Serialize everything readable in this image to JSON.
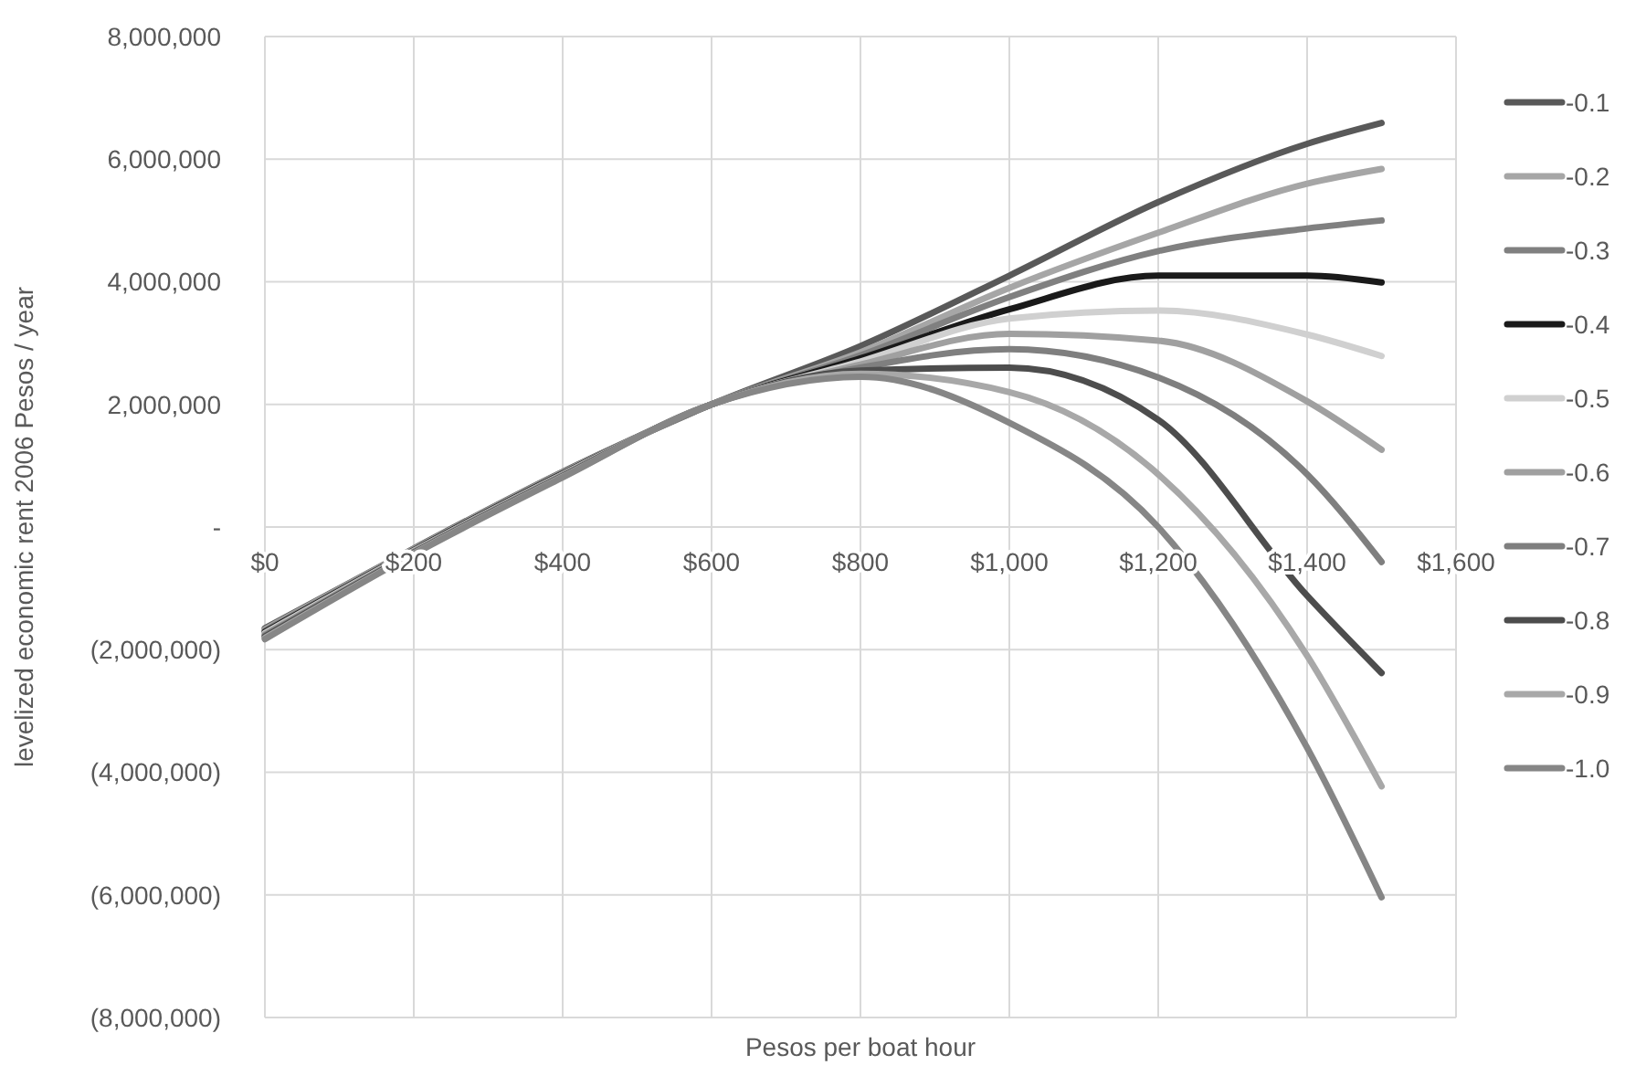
{
  "chart_data": {
    "type": "line",
    "xlabel": "Pesos per boat hour",
    "ylabel": "levelized economic rent 2006 Pesos / year",
    "x": [
      0,
      200,
      400,
      600,
      800,
      1000,
      1200,
      1400,
      1500
    ],
    "xlim": [
      0,
      1600
    ],
    "xticks": [
      {
        "value": 0,
        "label": "$0"
      },
      {
        "value": 200,
        "label": "$200"
      },
      {
        "value": 400,
        "label": "$400"
      },
      {
        "value": 600,
        "label": "$600"
      },
      {
        "value": 800,
        "label": "$800"
      },
      {
        "value": 1000,
        "label": "$1,000"
      },
      {
        "value": 1200,
        "label": "$1,200"
      },
      {
        "value": 1400,
        "label": "$1,400"
      },
      {
        "value": 1600,
        "label": "$1,600"
      }
    ],
    "ylim": [
      -8000000,
      8000000
    ],
    "yticks": [
      {
        "value": 8000000,
        "label": "8,000,000"
      },
      {
        "value": 6000000,
        "label": "6,000,000"
      },
      {
        "value": 4000000,
        "label": "4,000,000"
      },
      {
        "value": 2000000,
        "label": "2,000,000"
      },
      {
        "value": 0,
        "label": "-"
      },
      {
        "value": -2000000,
        "label": "(2,000,000)"
      },
      {
        "value": -4000000,
        "label": "(4,000,000)"
      },
      {
        "value": -6000000,
        "label": "(6,000,000)"
      },
      {
        "value": -8000000,
        "label": "(8,000,000)"
      }
    ],
    "grid": true,
    "legend": "right",
    "line_style": "solid",
    "series": [
      {
        "name": "-0.1",
        "color": "#595959",
        "values": [
          -1650000,
          -350000,
          900000,
          2000000,
          2950000,
          4100000,
          5300000,
          6250000,
          6590000
        ]
      },
      {
        "name": "-0.2",
        "color": "#a6a6a6",
        "values": [
          -1670000,
          -360000,
          890000,
          2000000,
          2850000,
          3900000,
          4800000,
          5600000,
          5840000
        ]
      },
      {
        "name": "-0.3",
        "color": "#808080",
        "values": [
          -1690000,
          -370000,
          880000,
          2000000,
          2800000,
          3750000,
          4500000,
          4870000,
          5000000
        ]
      },
      {
        "name": "-0.4",
        "color": "#1a1a1a",
        "values": [
          -1710000,
          -380000,
          870000,
          2000000,
          2750000,
          3550000,
          4100000,
          4100000,
          3990000
        ]
      },
      {
        "name": "-0.5",
        "color": "#d0d0d0",
        "values": [
          -1730000,
          -390000,
          860000,
          2000000,
          2700000,
          3400000,
          3530000,
          3140000,
          2790000
        ]
      },
      {
        "name": "-0.6",
        "color": "#a0a0a0",
        "values": [
          -1750000,
          -400000,
          850000,
          2000000,
          2650000,
          3150000,
          3040000,
          2050000,
          1260000
        ]
      },
      {
        "name": "-0.7",
        "color": "#7f7f7f",
        "values": [
          -1770000,
          -410000,
          840000,
          2000000,
          2600000,
          2900000,
          2440000,
          860000,
          -570000
        ]
      },
      {
        "name": "-0.8",
        "color": "#4d4d4d",
        "values": [
          -1790000,
          -420000,
          830000,
          2000000,
          2550000,
          2600000,
          1750000,
          -1120000,
          -2380000
        ]
      },
      {
        "name": "-0.9",
        "color": "#a8a8a8",
        "values": [
          -1810000,
          -430000,
          820000,
          2000000,
          2500000,
          2200000,
          860000,
          -2100000,
          -4230000
        ]
      },
      {
        "name": "-1.0",
        "color": "#868686",
        "values": [
          -1830000,
          -440000,
          810000,
          2000000,
          2450000,
          1700000,
          0,
          -3600000,
          -6040000
        ]
      }
    ]
  }
}
